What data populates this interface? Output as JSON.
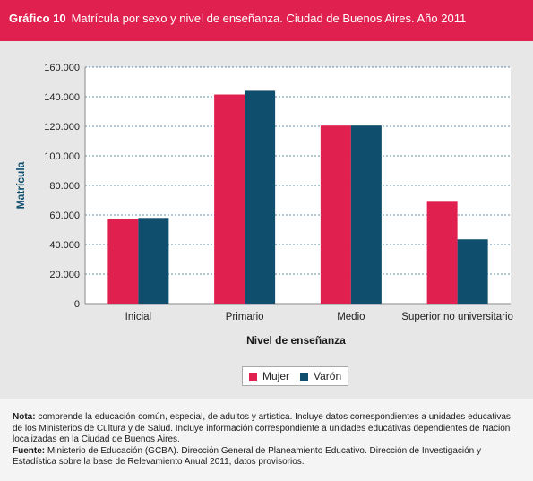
{
  "header": {
    "label": "Gráfico 10",
    "title": "Matrícula por sexo y nivel de enseñanza. Ciudad de Buenos Aires. Año 2011"
  },
  "chart_data": {
    "type": "bar",
    "categories": [
      "Inicial",
      "Primario",
      "Medio",
      "Superior no universitario"
    ],
    "series": [
      {
        "name": "Mujer",
        "color": "#e0204e",
        "values": [
          57500,
          141500,
          120500,
          69500
        ]
      },
      {
        "name": "Varón",
        "color": "#0f4e6c",
        "values": [
          58000,
          144000,
          120500,
          43500
        ]
      }
    ],
    "xlabel": "Nivel de enseñanza",
    "ylabel": "Matrícula",
    "ylim": [
      0,
      160000
    ],
    "yticks": [
      "0",
      "20.000",
      "40.000",
      "60.000",
      "80.000",
      "100.000",
      "120.000",
      "140.000",
      "160.000"
    ],
    "grid": true,
    "legend_position": "bottom-center"
  },
  "notes": {
    "nota_label": "Nota:",
    "nota_text": "comprende la educación común, especial, de adultos y artística. Incluye datos correspondientes a unidades educativas de los Ministerios de Cultura y de Salud. Incluye información correspondiente a unidades educativas dependientes de Nación localizadas en la Ciudad de Buenos Aires.",
    "fuente_label": "Fuente:",
    "fuente_text": "Ministerio de Educación (GCBA). Dirección General de Planeamiento Educativo. Dirección de Investigación y Estadística sobre la base de Relevamiento Anual 2011, datos provisorios."
  }
}
